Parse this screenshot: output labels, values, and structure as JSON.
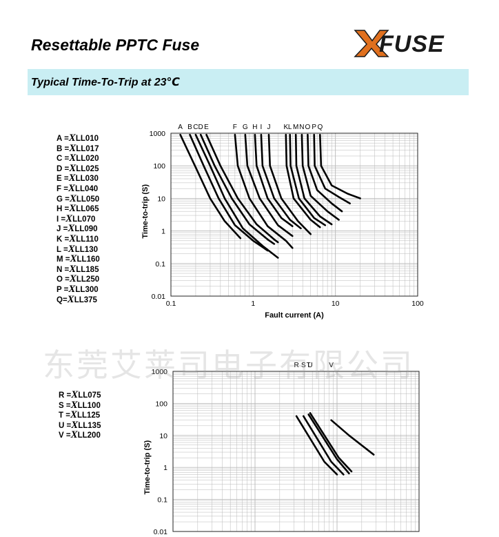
{
  "document": {
    "title": "Resettable PPTC Fuse",
    "logo_text": "FUSE",
    "section_title": "Typical Time-To-Trip at 23℃",
    "watermark": "东莞艾莱司电子有限公司"
  },
  "colors": {
    "section_bar": "#c9eef3",
    "logo_accent": "#e0701e",
    "curve": "#000000",
    "grid": "#b8b8b8"
  },
  "chart_data": [
    {
      "type": "line",
      "title": "",
      "xlabel": "Fault current (A)",
      "ylabel": "Time-to-trip (S)",
      "x_scale": "log",
      "y_scale": "log",
      "xlim": [
        0.1,
        100
      ],
      "ylim": [
        0.01,
        1000
      ],
      "x_ticks": [
        "0.1",
        "1",
        "10",
        "100"
      ],
      "y_ticks": [
        "0.01",
        "0.1",
        "1",
        "10",
        "100",
        "1000"
      ],
      "grid": true,
      "legend_entries": [
        {
          "key": "A =",
          "part": "LL010"
        },
        {
          "key": "B =",
          "part": "LL017"
        },
        {
          "key": "C =",
          "part": "LL020"
        },
        {
          "key": "D =",
          "part": "LL025"
        },
        {
          "key": "E =",
          "part": "LL030"
        },
        {
          "key": "F =",
          "part": "LL040"
        },
        {
          "key": "G =",
          "part": "LL050"
        },
        {
          "key": "H =",
          "part": "LL065"
        },
        {
          "key": "I =",
          "part": "LL070"
        },
        {
          "key": "J =",
          "part": "LL090"
        },
        {
          "key": "K =",
          "part": "LL110"
        },
        {
          "key": "L =",
          "part": "LL130"
        },
        {
          "key": "M =",
          "part": "LL160"
        },
        {
          "key": "N =",
          "part": "LL185"
        },
        {
          "key": "O =",
          "part": "LL250"
        },
        {
          "key": "P =",
          "part": "LL300"
        },
        {
          "key": "Q=",
          "part": "LL375"
        }
      ],
      "legend_mark": "X",
      "series": [
        {
          "name": "A",
          "points": [
            [
              0.13,
              900
            ],
            [
              0.2,
              90
            ],
            [
              0.3,
              10
            ],
            [
              0.45,
              2
            ],
            [
              0.7,
              0.6
            ]
          ]
        },
        {
          "name": "B",
          "points": [
            [
              0.17,
              900
            ],
            [
              0.25,
              100
            ],
            [
              0.38,
              10
            ],
            [
              0.6,
              1.5
            ],
            [
              1,
              0.5
            ],
            [
              1.5,
              0.25
            ]
          ]
        },
        {
          "name": "C",
          "points": [
            [
              0.2,
              900
            ],
            [
              0.3,
              100
            ],
            [
              0.45,
              10
            ],
            [
              0.75,
              1.2
            ],
            [
              1.3,
              0.35
            ],
            [
              2,
              0.15
            ]
          ]
        },
        {
          "name": "D",
          "points": [
            [
              0.23,
              900
            ],
            [
              0.34,
              100
            ],
            [
              0.55,
              10
            ],
            [
              0.9,
              1.6
            ],
            [
              1.5,
              0.55
            ],
            [
              1.8,
              0.4
            ]
          ]
        },
        {
          "name": "E",
          "points": [
            [
              0.27,
              900
            ],
            [
              0.4,
              100
            ],
            [
              0.65,
              10
            ],
            [
              1.1,
              1.6
            ],
            [
              1.8,
              0.55
            ],
            [
              2,
              0.45
            ]
          ]
        },
        {
          "name": "F",
          "points": [
            [
              0.6,
              900
            ],
            [
              0.65,
              100
            ],
            [
              0.9,
              10
            ],
            [
              1.5,
              1.4
            ],
            [
              2.5,
              0.5
            ],
            [
              3,
              0.3
            ]
          ]
        },
        {
          "name": "G",
          "points": [
            [
              0.8,
              900
            ],
            [
              0.85,
              100
            ],
            [
              1.2,
              10
            ],
            [
              2,
              1.5
            ],
            [
              3,
              0.7
            ]
          ]
        },
        {
          "name": "H",
          "points": [
            [
              1.05,
              900
            ],
            [
              1.1,
              100
            ],
            [
              1.5,
              10
            ],
            [
              2.2,
              2.5
            ],
            [
              3,
              1.4
            ]
          ]
        },
        {
          "name": "I",
          "points": [
            [
              1.25,
              900
            ],
            [
              1.3,
              100
            ],
            [
              1.8,
              10
            ],
            [
              2.8,
              2.2
            ],
            [
              3.8,
              1.2
            ]
          ]
        },
        {
          "name": "J",
          "points": [
            [
              1.55,
              900
            ],
            [
              1.6,
              100
            ],
            [
              2.2,
              10
            ],
            [
              3.5,
              2
            ],
            [
              5,
              0.8
            ]
          ]
        },
        {
          "name": "K",
          "points": [
            [
              2.5,
              900
            ],
            [
              2.55,
              100
            ],
            [
              3.1,
              10
            ],
            [
              5,
              2.2
            ],
            [
              6.5,
              1.3
            ]
          ]
        },
        {
          "name": "L",
          "points": [
            [
              2.8,
              900
            ],
            [
              2.85,
              100
            ],
            [
              3.6,
              10
            ],
            [
              5.5,
              2.5
            ],
            [
              7.5,
              1.5
            ]
          ]
        },
        {
          "name": "M",
          "points": [
            [
              3.3,
              900
            ],
            [
              3.35,
              100
            ],
            [
              4.2,
              10
            ],
            [
              6.5,
              2.8
            ],
            [
              9,
              1.6
            ]
          ]
        },
        {
          "name": "N",
          "points": [
            [
              3.9,
              900
            ],
            [
              4,
              100
            ],
            [
              5,
              12
            ],
            [
              8,
              4
            ],
            [
              11,
              2.2
            ]
          ]
        },
        {
          "name": "O",
          "points": [
            [
              4.6,
              900
            ],
            [
              4.7,
              100
            ],
            [
              6,
              18
            ],
            [
              9,
              7
            ],
            [
              12,
              4
            ]
          ]
        },
        {
          "name": "P",
          "points": [
            [
              5.5,
              900
            ],
            [
              5.6,
              100
            ],
            [
              7.5,
              20
            ],
            [
              11,
              11
            ],
            [
              15,
              7
            ]
          ]
        },
        {
          "name": "Q",
          "points": [
            [
              6.5,
              900
            ],
            [
              6.7,
              100
            ],
            [
              9,
              25
            ],
            [
              14,
              14
            ],
            [
              20,
              10
            ]
          ]
        }
      ]
    },
    {
      "type": "line",
      "title": "",
      "xlabel": "",
      "ylabel": "Time-to-trip (S)",
      "x_scale": "log",
      "y_scale": "log",
      "xlim": [
        0.1,
        100
      ],
      "ylim": [
        0.01,
        1000
      ],
      "y_ticks": [
        "1000",
        "100",
        "10",
        "1",
        "0.1",
        "0.01"
      ],
      "grid": true,
      "legend_entries": [
        {
          "key": "R =",
          "part": "LL075"
        },
        {
          "key": "S =",
          "part": "LL100"
        },
        {
          "key": "T =",
          "part": "LL125"
        },
        {
          "key": "U =",
          "part": "LL135"
        },
        {
          "key": "V =",
          "part": "LL200"
        }
      ],
      "legend_mark": "X",
      "series": [
        {
          "name": "R",
          "points": [
            [
              3.2,
              40
            ],
            [
              7,
              1.5
            ],
            [
              10,
              0.6
            ]
          ]
        },
        {
          "name": "S",
          "points": [
            [
              3.9,
              40
            ],
            [
              8.5,
              1.5
            ],
            [
              12,
              0.6
            ]
          ]
        },
        {
          "name": "T",
          "points": [
            [
              4.5,
              45
            ],
            [
              10,
              1.8
            ],
            [
              14,
              0.65
            ]
          ]
        },
        {
          "name": "U",
          "points": [
            [
              4.7,
              50
            ],
            [
              10.5,
              2
            ],
            [
              15,
              0.75
            ]
          ]
        },
        {
          "name": "V",
          "points": [
            [
              8.5,
              30
            ],
            [
              14,
              10
            ],
            [
              28,
              2.5
            ]
          ]
        }
      ]
    }
  ]
}
